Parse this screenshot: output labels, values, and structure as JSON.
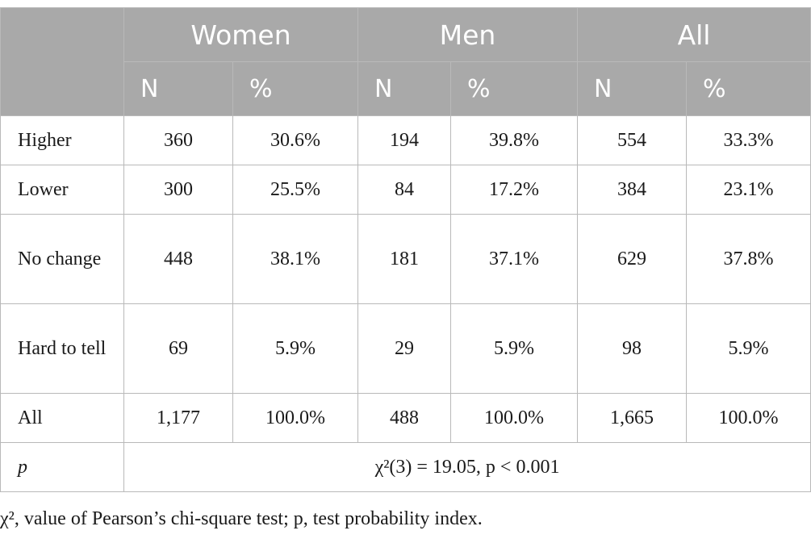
{
  "table": {
    "groups": [
      "Women",
      "Men",
      "All"
    ],
    "subheaders": [
      "N",
      "%",
      "N",
      "%",
      "N",
      "%"
    ],
    "rows": [
      {
        "label": "Higher",
        "values": [
          "360",
          "30.6%",
          "194",
          "39.8%",
          "554",
          "33.3%"
        ]
      },
      {
        "label": "Lower",
        "values": [
          "300",
          "25.5%",
          "84",
          "17.2%",
          "384",
          "23.1%"
        ]
      },
      {
        "label": "No change",
        "values": [
          "448",
          "38.1%",
          "181",
          "37.1%",
          "629",
          "37.8%"
        ]
      },
      {
        "label": "Hard to tell",
        "values": [
          "69",
          "5.9%",
          "29",
          "5.9%",
          "98",
          "5.9%"
        ]
      },
      {
        "label": "All",
        "values": [
          "1,177",
          "100.0%",
          "488",
          "100.0%",
          "1,665",
          "100.0%"
        ]
      }
    ],
    "p_row": {
      "label": "p",
      "value": "χ²(3) = 19.05, p < 0.001"
    }
  },
  "footnote": "χ², value of Pearson’s chi-square test; p, test probability index."
}
